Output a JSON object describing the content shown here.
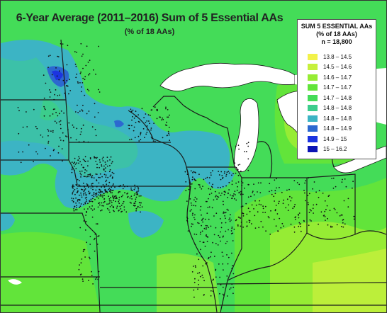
{
  "title": "6-Year Average (2011–2016) Sum of 5 Essential AAs",
  "subtitle": "(% of 18 AAs)",
  "legend": {
    "title_line1": "SUM 5 ESSENTIAL AAs",
    "title_line2": "(% of 18 AAs)",
    "title_line3": "n = 18,800",
    "items": [
      {
        "label": "13.8 – 14.5",
        "color": "#f2f24a"
      },
      {
        "label": "14.5 – 14.6",
        "color": "#c6f03c"
      },
      {
        "label": "14.6 – 14.7",
        "color": "#96ec34"
      },
      {
        "label": "14.7 – 14.7",
        "color": "#62e43a"
      },
      {
        "label": "14.7 – 14.8",
        "color": "#44dc58"
      },
      {
        "label": "14.8 – 14.8",
        "color": "#3ccd8c"
      },
      {
        "label": "14.8 – 14.8",
        "color": "#3cb4c4"
      },
      {
        "label": "14.8 – 14.9",
        "color": "#2c68d0"
      },
      {
        "label": "14.9 – 15",
        "color": "#1c34e0"
      },
      {
        "label": "15 – 16.2",
        "color": "#0c14b4"
      }
    ]
  },
  "colors": {
    "water": "#ffffff",
    "border": "#1a1a1a",
    "dot": "#111111"
  }
}
